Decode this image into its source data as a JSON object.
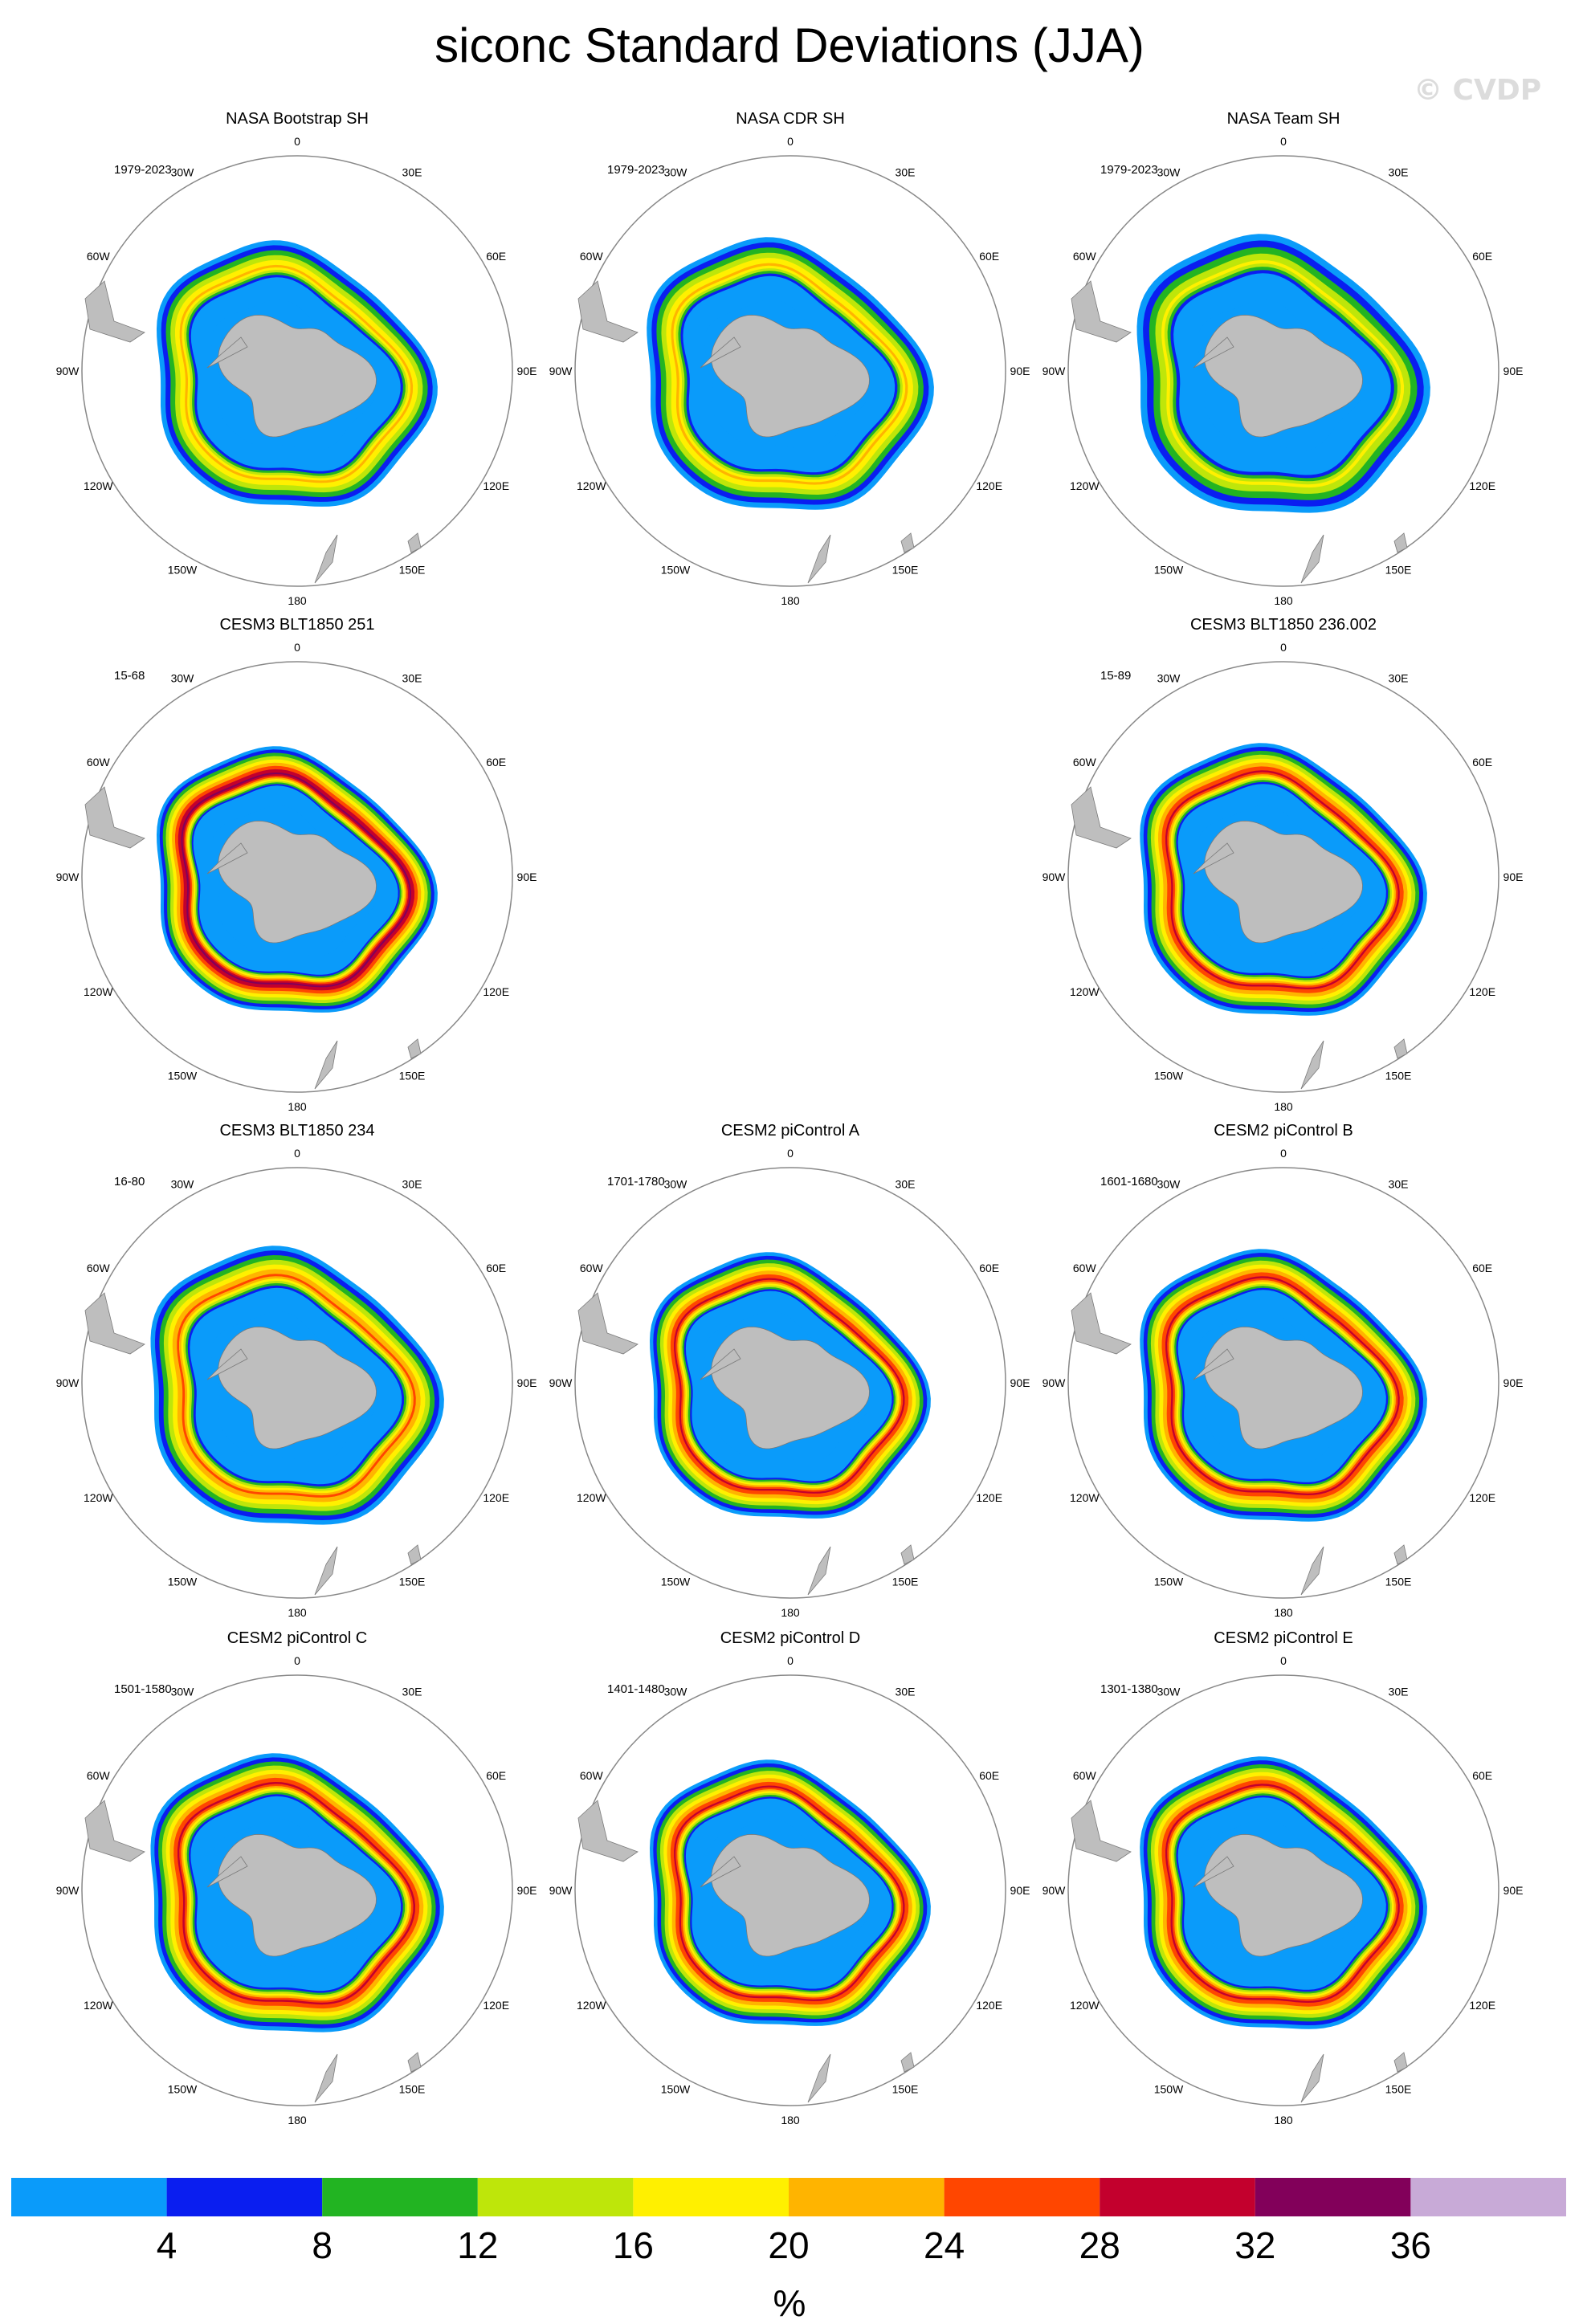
{
  "title": "siconc Standard Deviations (JJA)",
  "watermark": "© CVDP",
  "lon_labels": [
    {
      "lon": 0,
      "label": "0"
    },
    {
      "lon": 30,
      "label": "30E"
    },
    {
      "lon": 60,
      "label": "60E"
    },
    {
      "lon": 90,
      "label": "90E"
    },
    {
      "lon": 120,
      "label": "120E"
    },
    {
      "lon": 150,
      "label": "150E"
    },
    {
      "lon": 180,
      "label": "180"
    },
    {
      "lon": -150,
      "label": "150W"
    },
    {
      "lon": -120,
      "label": "120W"
    },
    {
      "lon": -90,
      "label": "90W"
    },
    {
      "lon": -60,
      "label": "60W"
    },
    {
      "lon": -30,
      "label": "30W"
    }
  ],
  "panels": [
    {
      "title": "NASA Bootstrap SH",
      "period": "1979-2023",
      "row": 0,
      "col": 0,
      "peak_level": 5
    },
    {
      "title": "NASA CDR SH",
      "period": "1979-2023",
      "row": 0,
      "col": 1,
      "peak_level": 5
    },
    {
      "title": "NASA Team SH",
      "period": "1979-2023",
      "row": 0,
      "col": 2,
      "peak_level": 4
    },
    {
      "title": "CESM3 BLT1850 251",
      "period": "15-68",
      "row": 1,
      "col": 0,
      "peak_level": 8
    },
    {
      "title": "CESM3 BLT1850 236.002",
      "period": "15-89",
      "row": 1,
      "col": 2,
      "peak_level": 7
    },
    {
      "title": "CESM3 BLT1850 234",
      "period": "16-80",
      "row": 2,
      "col": 0,
      "peak_level": 6
    },
    {
      "title": "CESM2 piControl A",
      "period": "1701-1780",
      "row": 2,
      "col": 1,
      "peak_level": 7
    },
    {
      "title": "CESM2 piControl B",
      "period": "1601-1680",
      "row": 2,
      "col": 2,
      "peak_level": 7
    },
    {
      "title": "CESM2 piControl C",
      "period": "1501-1580",
      "row": 3,
      "col": 0,
      "peak_level": 7
    },
    {
      "title": "CESM2 piControl D",
      "period": "1401-1480",
      "row": 3,
      "col": 1,
      "peak_level": 7
    },
    {
      "title": "CESM2 piControl E",
      "period": "1301-1380",
      "row": 3,
      "col": 2,
      "peak_level": 7
    }
  ],
  "colorbar": {
    "colors": [
      "#0a9bfa",
      "#0a1ef0",
      "#22b422",
      "#bee60a",
      "#fff000",
      "#ffb400",
      "#ff4600",
      "#c3002d",
      "#82005a",
      "#c8aad7"
    ],
    "labels": [
      "4",
      "8",
      "12",
      "16",
      "20",
      "24",
      "28",
      "32",
      "36"
    ],
    "unit": "%"
  },
  "colors": {
    "land": "#bebebe",
    "land_edge": "#7a7a7a",
    "frame": "#888888"
  }
}
